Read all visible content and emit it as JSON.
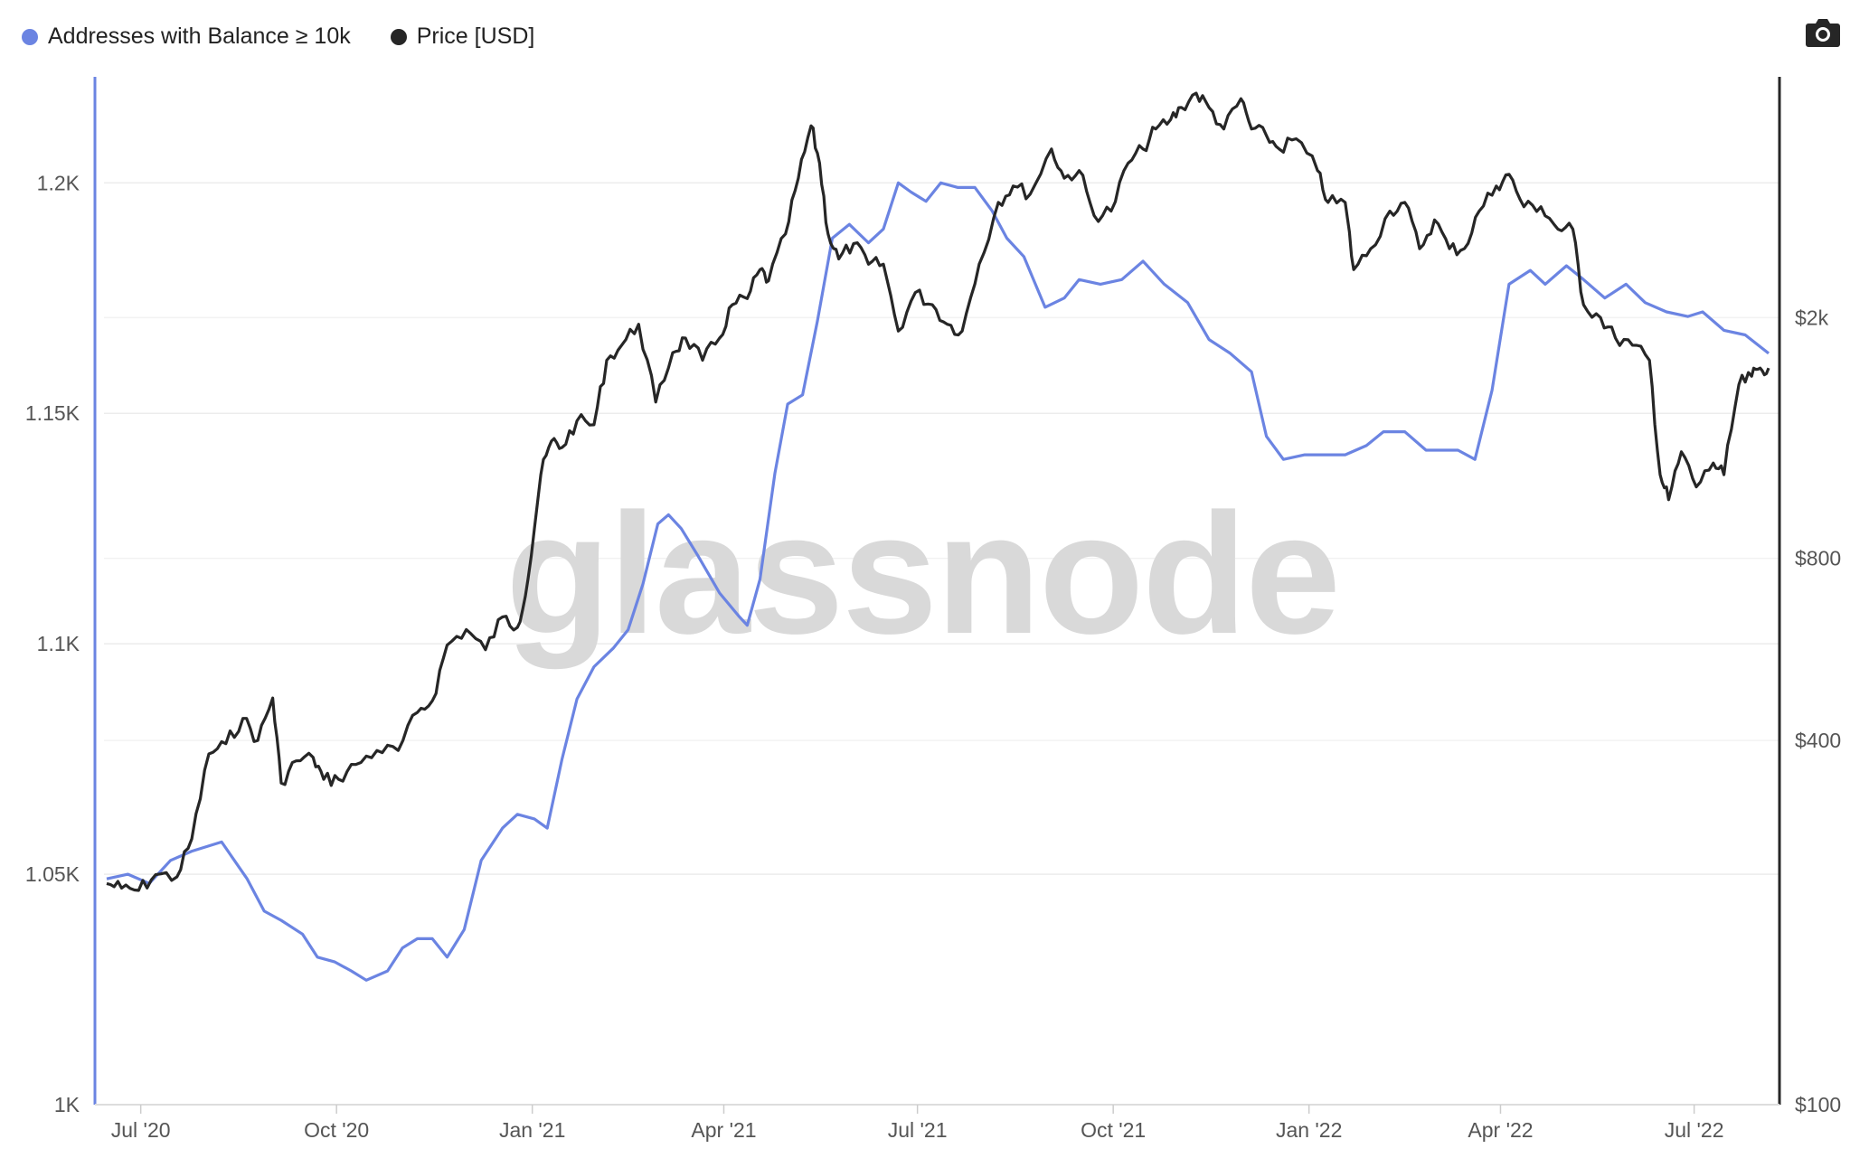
{
  "legend": {
    "series1": "Addresses with Balance ≥ 10k",
    "series2": "Price [USD]"
  },
  "toolbar": {
    "icon": "camera-icon"
  },
  "watermark": "glassnode",
  "colors": {
    "addresses": "#6b84e2",
    "price": "#262626",
    "left_axis": "#6b84e2",
    "right_axis": "#262626"
  },
  "chart_data": {
    "type": "line",
    "x_ticks": [
      "Jul '20",
      "Oct '20",
      "Jan '21",
      "Apr '21",
      "Jul '21",
      "Oct '21",
      "Jan '22",
      "Apr '22",
      "Jul '22"
    ],
    "x_tick_dates": [
      "2020-07-01",
      "2020-10-01",
      "2021-01-01",
      "2021-04-01",
      "2021-07-01",
      "2021-10-01",
      "2022-01-01",
      "2022-04-01",
      "2022-07-01"
    ],
    "x_range": [
      "2020-06-15",
      "2022-08-05"
    ],
    "y_left": {
      "ticks": [
        1000,
        1050,
        1100,
        1150,
        1200
      ],
      "tick_labels": [
        "1K",
        "1.05K",
        "1.1K",
        "1.15K",
        "1.2K"
      ],
      "range": [
        1000,
        1223
      ]
    },
    "y_right": {
      "scale": "log",
      "ticks": [
        100,
        400,
        800,
        2000
      ],
      "tick_labels": [
        "$100",
        "$400",
        "$800",
        "$2k"
      ],
      "range": [
        100,
        5000
      ]
    },
    "series": [
      {
        "name": "Addresses with Balance ≥ 10k",
        "axis": "left",
        "points": [
          [
            "2020-06-15",
            1049
          ],
          [
            "2020-06-25",
            1050
          ],
          [
            "2020-07-05",
            1048
          ],
          [
            "2020-07-15",
            1053
          ],
          [
            "2020-07-25",
            1055
          ],
          [
            "2020-08-08",
            1057
          ],
          [
            "2020-08-20",
            1049
          ],
          [
            "2020-08-28",
            1042
          ],
          [
            "2020-09-05",
            1040
          ],
          [
            "2020-09-15",
            1037
          ],
          [
            "2020-09-22",
            1032
          ],
          [
            "2020-09-30",
            1031
          ],
          [
            "2020-10-08",
            1029
          ],
          [
            "2020-10-15",
            1027
          ],
          [
            "2020-10-25",
            1029
          ],
          [
            "2020-11-01",
            1034
          ],
          [
            "2020-11-08",
            1036
          ],
          [
            "2020-11-15",
            1036
          ],
          [
            "2020-11-22",
            1032
          ],
          [
            "2020-11-30",
            1038
          ],
          [
            "2020-12-08",
            1053
          ],
          [
            "2020-12-18",
            1060
          ],
          [
            "2020-12-25",
            1063
          ],
          [
            "2021-01-02",
            1062
          ],
          [
            "2021-01-08",
            1060
          ],
          [
            "2021-01-15",
            1075
          ],
          [
            "2021-01-22",
            1088
          ],
          [
            "2021-01-30",
            1095
          ],
          [
            "2021-02-08",
            1099
          ],
          [
            "2021-02-15",
            1103
          ],
          [
            "2021-02-22",
            1113
          ],
          [
            "2021-03-01",
            1126
          ],
          [
            "2021-03-06",
            1128
          ],
          [
            "2021-03-12",
            1125
          ],
          [
            "2021-03-20",
            1119
          ],
          [
            "2021-03-30",
            1111
          ],
          [
            "2021-04-08",
            1106
          ],
          [
            "2021-04-12",
            1104
          ],
          [
            "2021-04-18",
            1114
          ],
          [
            "2021-04-25",
            1137
          ],
          [
            "2021-05-01",
            1152
          ],
          [
            "2021-05-08",
            1154
          ],
          [
            "2021-05-15",
            1170
          ],
          [
            "2021-05-22",
            1188
          ],
          [
            "2021-05-30",
            1191
          ],
          [
            "2021-06-08",
            1187
          ],
          [
            "2021-06-15",
            1190
          ],
          [
            "2021-06-22",
            1200
          ],
          [
            "2021-06-28",
            1198
          ],
          [
            "2021-07-05",
            1196
          ],
          [
            "2021-07-12",
            1200
          ],
          [
            "2021-07-20",
            1199
          ],
          [
            "2021-07-28",
            1199
          ],
          [
            "2021-08-05",
            1194
          ],
          [
            "2021-08-12",
            1188
          ],
          [
            "2021-08-20",
            1184
          ],
          [
            "2021-08-30",
            1173
          ],
          [
            "2021-09-08",
            1175
          ],
          [
            "2021-09-15",
            1179
          ],
          [
            "2021-09-25",
            1178
          ],
          [
            "2021-10-05",
            1179
          ],
          [
            "2021-10-15",
            1183
          ],
          [
            "2021-10-25",
            1178
          ],
          [
            "2021-11-05",
            1174
          ],
          [
            "2021-11-15",
            1166
          ],
          [
            "2021-11-25",
            1163
          ],
          [
            "2021-12-05",
            1159
          ],
          [
            "2021-12-12",
            1145
          ],
          [
            "2021-12-20",
            1140
          ],
          [
            "2021-12-30",
            1141
          ],
          [
            "2022-01-08",
            1141
          ],
          [
            "2022-01-18",
            1141
          ],
          [
            "2022-01-28",
            1143
          ],
          [
            "2022-02-05",
            1146
          ],
          [
            "2022-02-15",
            1146
          ],
          [
            "2022-02-25",
            1142
          ],
          [
            "2022-03-05",
            1142
          ],
          [
            "2022-03-12",
            1142
          ],
          [
            "2022-03-20",
            1140
          ],
          [
            "2022-03-28",
            1155
          ],
          [
            "2022-04-05",
            1178
          ],
          [
            "2022-04-15",
            1181
          ],
          [
            "2022-04-22",
            1178
          ],
          [
            "2022-05-02",
            1182
          ],
          [
            "2022-05-10",
            1179
          ],
          [
            "2022-05-20",
            1175
          ],
          [
            "2022-05-30",
            1178
          ],
          [
            "2022-06-08",
            1174
          ],
          [
            "2022-06-18",
            1172
          ],
          [
            "2022-06-28",
            1171
          ],
          [
            "2022-07-05",
            1172
          ],
          [
            "2022-07-15",
            1168
          ],
          [
            "2022-07-25",
            1167
          ],
          [
            "2022-08-05",
            1163
          ]
        ]
      },
      {
        "name": "Price [USD]",
        "axis": "right",
        "points": [
          [
            "2020-06-15",
            232
          ],
          [
            "2020-06-22",
            228
          ],
          [
            "2020-06-30",
            226
          ],
          [
            "2020-07-08",
            240
          ],
          [
            "2020-07-18",
            238
          ],
          [
            "2020-07-25",
            275
          ],
          [
            "2020-08-02",
            380
          ],
          [
            "2020-08-10",
            395
          ],
          [
            "2020-08-18",
            435
          ],
          [
            "2020-08-25",
            400
          ],
          [
            "2020-09-01",
            470
          ],
          [
            "2020-09-05",
            340
          ],
          [
            "2020-09-12",
            370
          ],
          [
            "2020-09-20",
            375
          ],
          [
            "2020-09-25",
            345
          ],
          [
            "2020-10-02",
            345
          ],
          [
            "2020-10-10",
            365
          ],
          [
            "2020-10-20",
            385
          ],
          [
            "2020-10-30",
            385
          ],
          [
            "2020-11-08",
            445
          ],
          [
            "2020-11-15",
            465
          ],
          [
            "2020-11-22",
            575
          ],
          [
            "2020-12-01",
            610
          ],
          [
            "2020-12-10",
            565
          ],
          [
            "2020-12-18",
            640
          ],
          [
            "2020-12-25",
            615
          ],
          [
            "2020-12-30",
            740
          ],
          [
            "2021-01-05",
            1100
          ],
          [
            "2021-01-10",
            1250
          ],
          [
            "2021-01-15",
            1220
          ],
          [
            "2021-01-22",
            1350
          ],
          [
            "2021-01-30",
            1330
          ],
          [
            "2021-02-05",
            1700
          ],
          [
            "2021-02-12",
            1800
          ],
          [
            "2021-02-20",
            1950
          ],
          [
            "2021-02-28",
            1450
          ],
          [
            "2021-03-08",
            1750
          ],
          [
            "2021-03-14",
            1850
          ],
          [
            "2021-03-22",
            1700
          ],
          [
            "2021-03-30",
            1850
          ],
          [
            "2021-04-05",
            2100
          ],
          [
            "2021-04-12",
            2150
          ],
          [
            "2021-04-18",
            2400
          ],
          [
            "2021-04-22",
            2300
          ],
          [
            "2021-04-30",
            2750
          ],
          [
            "2021-05-06",
            3400
          ],
          [
            "2021-05-12",
            4150
          ],
          [
            "2021-05-16",
            3600
          ],
          [
            "2021-05-20",
            2750
          ],
          [
            "2021-05-25",
            2500
          ],
          [
            "2021-06-01",
            2650
          ],
          [
            "2021-06-08",
            2450
          ],
          [
            "2021-06-15",
            2450
          ],
          [
            "2021-06-22",
            1900
          ],
          [
            "2021-06-30",
            2200
          ],
          [
            "2021-07-08",
            2100
          ],
          [
            "2021-07-15",
            1950
          ],
          [
            "2021-07-22",
            1900
          ],
          [
            "2021-07-30",
            2450
          ],
          [
            "2021-08-08",
            3100
          ],
          [
            "2021-08-15",
            3300
          ],
          [
            "2021-08-23",
            3200
          ],
          [
            "2021-09-02",
            3800
          ],
          [
            "2021-09-08",
            3400
          ],
          [
            "2021-09-15",
            3500
          ],
          [
            "2021-09-22",
            2950
          ],
          [
            "2021-09-30",
            3000
          ],
          [
            "2021-10-08",
            3600
          ],
          [
            "2021-10-15",
            3800
          ],
          [
            "2021-10-21",
            4100
          ],
          [
            "2021-10-28",
            4250
          ],
          [
            "2021-11-02",
            4450
          ],
          [
            "2021-11-09",
            4700
          ],
          [
            "2021-11-15",
            4450
          ],
          [
            "2021-11-22",
            4100
          ],
          [
            "2021-11-30",
            4600
          ],
          [
            "2021-12-05",
            4100
          ],
          [
            "2021-12-12",
            4000
          ],
          [
            "2021-12-18",
            3800
          ],
          [
            "2021-12-26",
            3950
          ],
          [
            "2022-01-05",
            3500
          ],
          [
            "2022-01-10",
            3100
          ],
          [
            "2022-01-18",
            3100
          ],
          [
            "2022-01-22",
            2400
          ],
          [
            "2022-01-30",
            2600
          ],
          [
            "2022-02-08",
            3000
          ],
          [
            "2022-02-15",
            3100
          ],
          [
            "2022-02-22",
            2600
          ],
          [
            "2022-03-01",
            2900
          ],
          [
            "2022-03-08",
            2600
          ],
          [
            "2022-03-15",
            2600
          ],
          [
            "2022-03-22",
            3000
          ],
          [
            "2022-03-30",
            3300
          ],
          [
            "2022-04-05",
            3450
          ],
          [
            "2022-04-12",
            3050
          ],
          [
            "2022-04-20",
            3050
          ],
          [
            "2022-04-28",
            2800
          ],
          [
            "2022-05-05",
            2800
          ],
          [
            "2022-05-10",
            2100
          ],
          [
            "2022-05-18",
            2000
          ],
          [
            "2022-05-25",
            1850
          ],
          [
            "2022-06-02",
            1800
          ],
          [
            "2022-06-10",
            1700
          ],
          [
            "2022-06-15",
            1100
          ],
          [
            "2022-06-19",
            1000
          ],
          [
            "2022-06-25",
            1200
          ],
          [
            "2022-07-02",
            1050
          ],
          [
            "2022-07-10",
            1150
          ],
          [
            "2022-07-15",
            1100
          ],
          [
            "2022-07-22",
            1550
          ],
          [
            "2022-07-28",
            1600
          ],
          [
            "2022-08-01",
            1650
          ],
          [
            "2022-08-05",
            1650
          ]
        ]
      }
    ]
  }
}
